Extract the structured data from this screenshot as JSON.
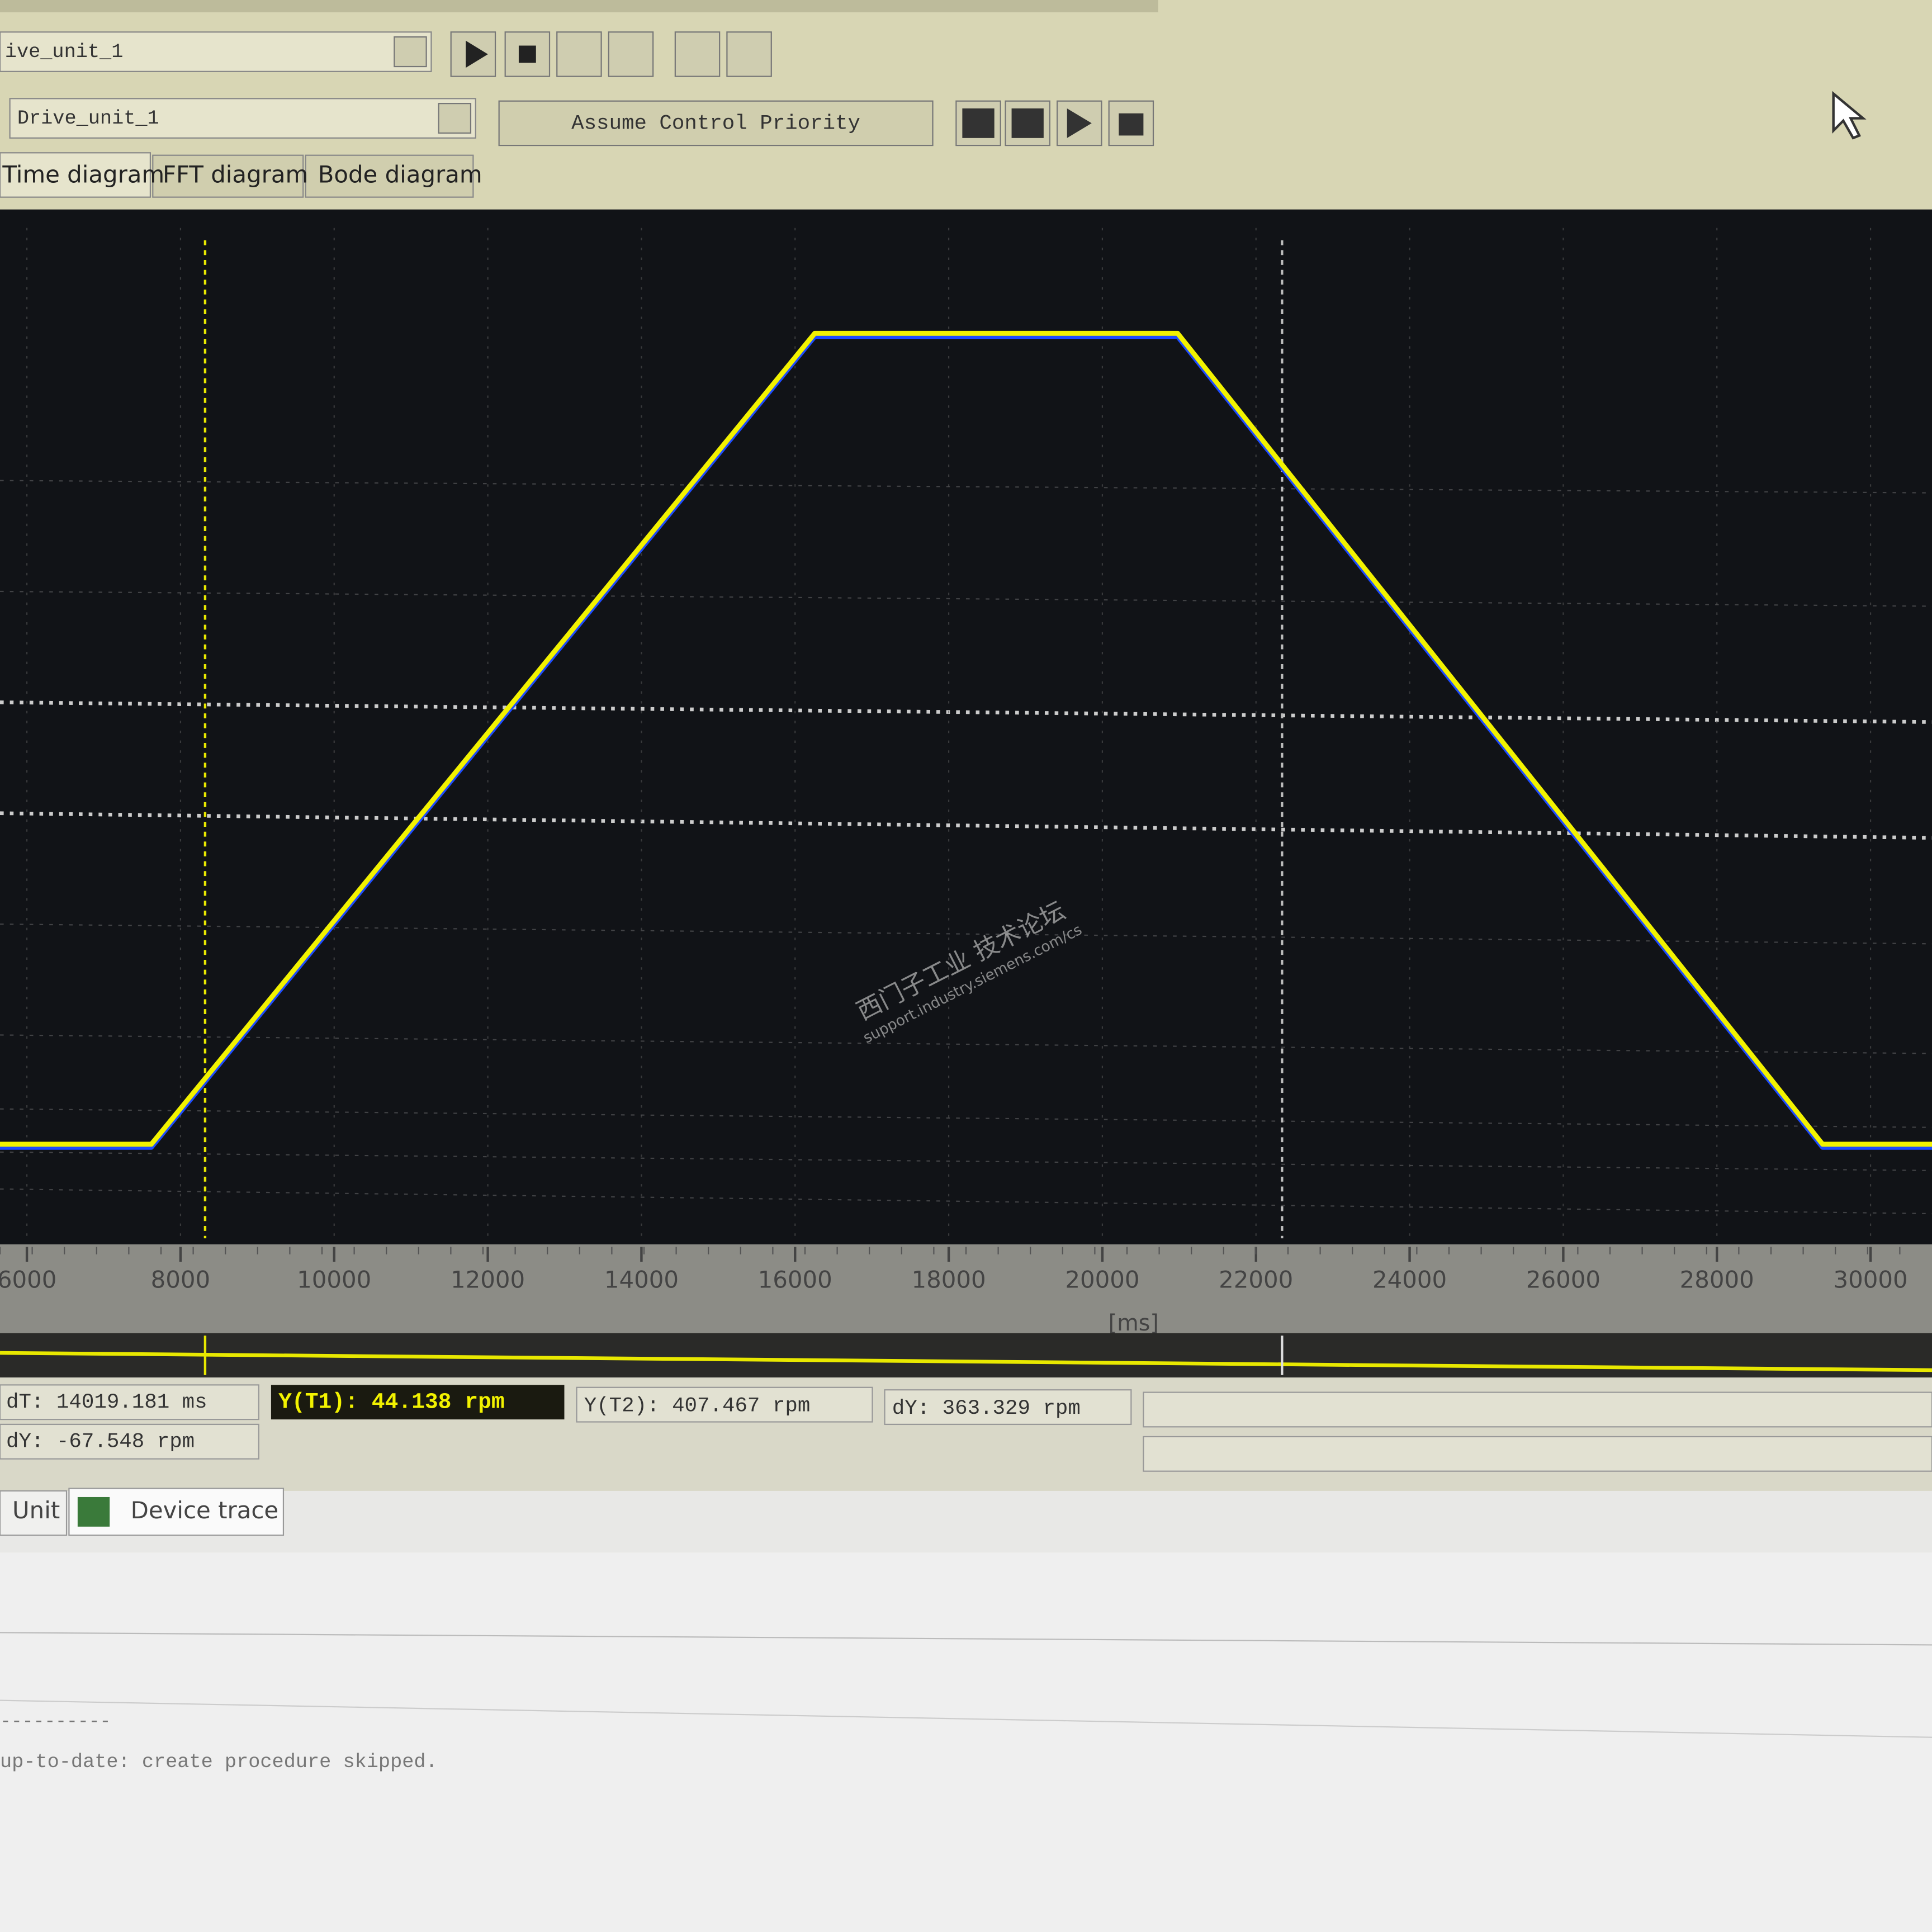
{
  "toolbar": {
    "combo1": "ive_unit_1",
    "combo2": "Drive_unit_1",
    "button": "Assume Control Priority"
  },
  "tabs": [
    "Time diagram",
    "FFT diagram",
    "Bode diagram"
  ],
  "chart_data": {
    "type": "line",
    "x": [
      5650,
      7620,
      16256,
      20980,
      29376,
      30800
    ],
    "series": [
      {
        "color": "#1e4cff",
        "values": [
          0,
          0,
          500,
          500,
          0,
          0
        ]
      },
      {
        "color": "#f2f200",
        "values": [
          0,
          0,
          500,
          500,
          0,
          0
        ]
      }
    ],
    "xlim": [
      5650,
      30800
    ],
    "xticks": [
      6000,
      8000,
      10000,
      12000,
      14000,
      16000,
      18000,
      20000,
      22000,
      24000,
      26000,
      28000,
      30000
    ],
    "ylim": [
      -58,
      565
    ],
    "x_label": "[ms]",
    "cursors": [
      8320,
      22339
    ],
    "grid": true
  },
  "readouts": [
    "dT: 14019.181 ms",
    "Y(T1): 44.138 rpm",
    "Y(T2): 407.467 rpm",
    "dY: 363.329 rpm",
    "dY: -67.548 rpm"
  ],
  "bottom_tabs": [
    "Unit",
    "Device trace"
  ],
  "log": [
    "----------",
    "up-to-date: create procedure skipped."
  ],
  "watermark": [
    "西门子工业 技术论坛",
    "support.industry.siemens.com/cs"
  ]
}
